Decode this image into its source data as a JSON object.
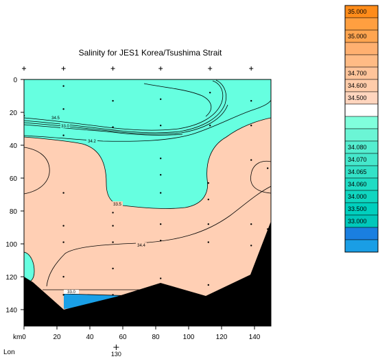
{
  "chart_data": {
    "type": "contour",
    "title": "Salinity for JES1 Korea/Tsushima Strait",
    "x_axis": {
      "unit_label": "km",
      "range": [
        0,
        150
      ],
      "ticks": [
        0,
        20,
        40,
        60,
        80,
        100,
        120,
        140
      ]
    },
    "y_axis": {
      "range": [
        0,
        150
      ],
      "inverted": true,
      "ticks": [
        0,
        20,
        40,
        60,
        80,
        100,
        120,
        140
      ]
    },
    "secondary_axis": {
      "label": "Lon",
      "ticks": [
        {
          "km": 56,
          "label": "130"
        }
      ]
    },
    "station_km": [
      0,
      24,
      54,
      83,
      113,
      138
    ],
    "sample_points": [
      [
        24,
        4
      ],
      [
        54,
        13
      ],
      [
        83,
        12
      ],
      [
        113,
        8
      ],
      [
        138,
        13
      ],
      [
        0,
        22
      ],
      [
        24,
        18
      ],
      [
        54,
        29
      ],
      [
        83,
        28
      ],
      [
        113,
        28
      ],
      [
        138,
        28
      ],
      [
        24,
        34
      ],
      [
        83,
        48
      ],
      [
        138,
        49
      ],
      [
        148,
        54
      ],
      [
        83,
        58
      ],
      [
        112,
        63
      ],
      [
        24,
        69
      ],
      [
        54,
        81
      ],
      [
        83,
        69
      ],
      [
        112,
        73
      ],
      [
        24,
        89
      ],
      [
        54,
        89
      ],
      [
        83,
        88
      ],
      [
        112,
        88
      ],
      [
        138,
        88
      ],
      [
        148,
        91
      ],
      [
        24,
        99
      ],
      [
        54,
        99
      ],
      [
        83,
        98
      ],
      [
        112,
        99
      ],
      [
        138,
        101
      ],
      [
        54,
        115
      ],
      [
        83,
        121
      ],
      [
        112,
        125
      ],
      [
        24,
        120
      ],
      [
        54,
        131
      ],
      [
        24,
        131
      ]
    ],
    "contour_labels": [
      "34.2",
      "33.5",
      "34.4",
      "34.5",
      "33.0"
    ],
    "colorbar": {
      "labels": [
        "35.000",
        "35.000",
        "34.700",
        "34.600",
        "34.500",
        "34.080",
        "34.070",
        "34.065",
        "34.060",
        "34.000",
        "33.500",
        "33.000"
      ],
      "colors": [
        "#ff8c1a",
        "#ff9f40",
        "#ffa550",
        "#ffb070",
        "#ffbb85",
        "#ffc49a",
        "#ffccaa",
        "#ffd5be",
        "#ffffff",
        "#80ffdc",
        "#6bf5d5",
        "#55eed0",
        "#45e8cc",
        "#33e2c8",
        "#20dcc4",
        "#10d6c0",
        "#00cfbe",
        "#00c8bb",
        "#1a7fe0",
        "#1a9ee5"
      ]
    },
    "colors": {
      "high_salinity": "#ffcfb4",
      "low_salinity": "#66ffe0",
      "lowest_salinity": "#1a9fe6",
      "bathymetry": "#000000",
      "contour_line": "#000000"
    }
  }
}
